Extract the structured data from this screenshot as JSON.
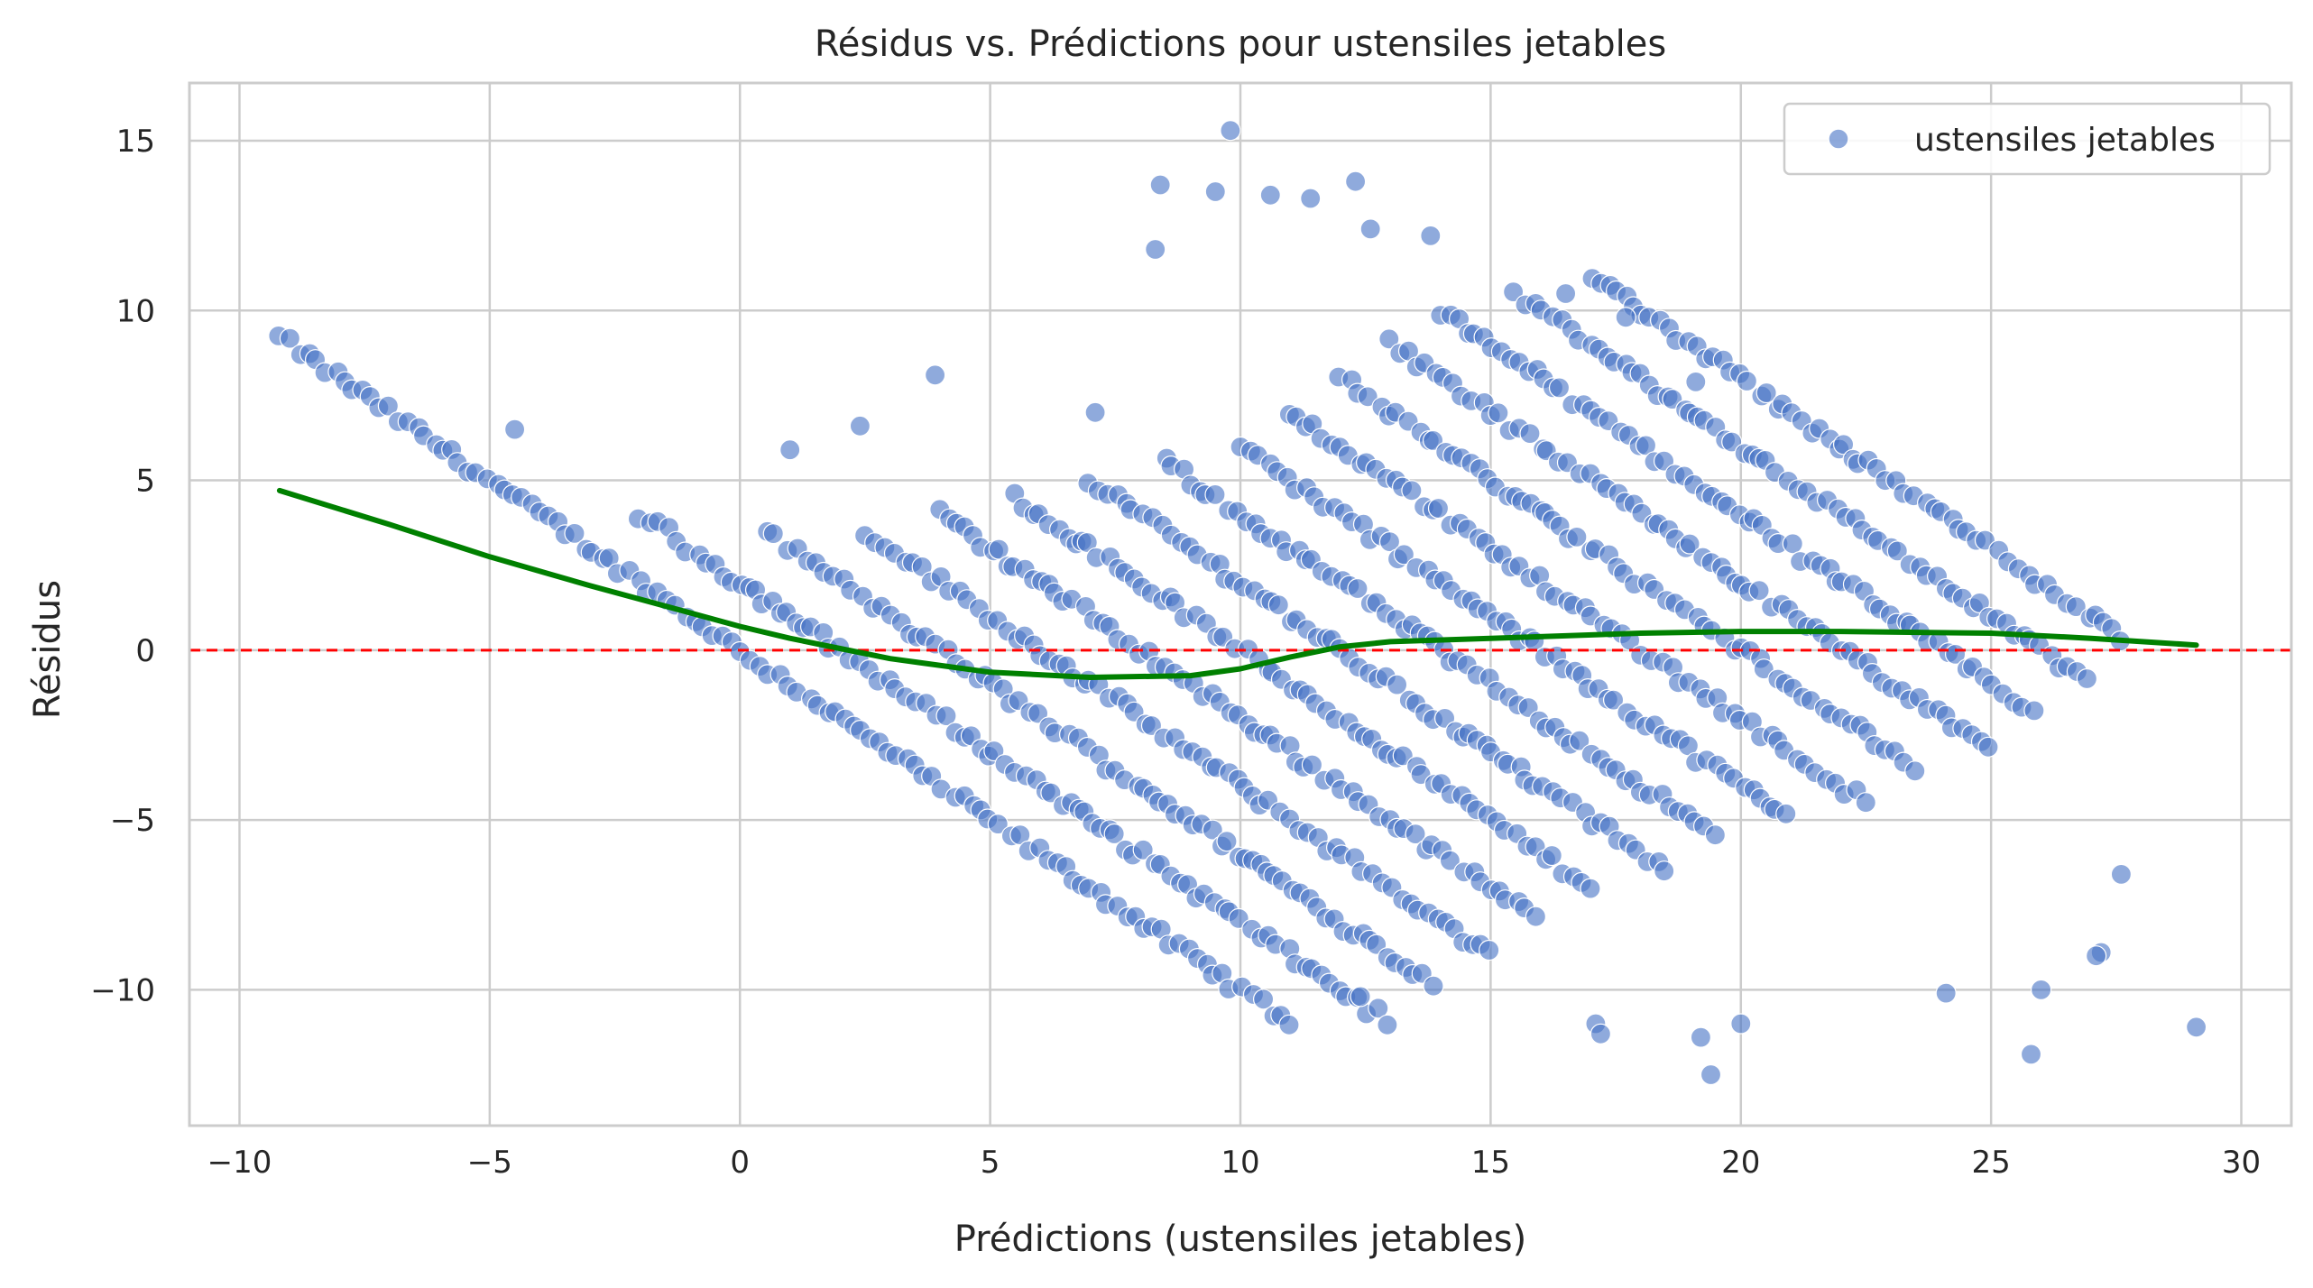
{
  "chart_data": {
    "type": "scatter",
    "title": "Résidus vs. Prédictions pour ustensiles jetables",
    "xlabel": "Prédictions (ustensiles jetables)",
    "ylabel": "Résidus",
    "xlim": [
      -11.0,
      31.0
    ],
    "ylim": [
      -14.0,
      16.7
    ],
    "xticks": [
      -10,
      -5,
      0,
      5,
      10,
      15,
      20,
      25,
      30
    ],
    "yticks": [
      -10,
      -5,
      0,
      5,
      10,
      15
    ],
    "xtick_labels": [
      "−10",
      "−5",
      "0",
      "5",
      "10",
      "15",
      "20",
      "25",
      "30"
    ],
    "ytick_labels": [
      "−10",
      "−5",
      "0",
      "5",
      "10",
      "15"
    ],
    "grid": true,
    "legend": {
      "position": "top-right",
      "entries": [
        "ustensiles jetables"
      ]
    },
    "colors": {
      "points": "#4472c4",
      "trend": "#008000",
      "zero_line": "#ff0000",
      "grid": "#cccccc"
    },
    "reference_line": {
      "y": 0,
      "style": "dashed",
      "color": "#ff0000"
    },
    "series": [
      {
        "name": "ustensiles jetables",
        "kind": "scatter",
        "note_points": "residual stripes follow y = c - x; stripe bands listed as [c, x_min, x_max]",
        "stripes": [
          [
            0,
            -9.2,
            11.1
          ],
          [
            2,
            -2.0,
            13.0
          ],
          [
            4,
            0.5,
            14.0
          ],
          [
            6,
            2.5,
            15.0
          ],
          [
            8,
            4.0,
            16.0
          ],
          [
            10,
            5.5,
            17.0
          ],
          [
            12,
            7.0,
            18.5
          ],
          [
            14,
            8.5,
            19.5
          ],
          [
            16,
            10.0,
            21.0
          ],
          [
            18,
            11.0,
            22.5
          ],
          [
            20,
            12.0,
            23.5
          ],
          [
            22,
            13.0,
            25.0
          ],
          [
            24,
            14.0,
            26.0
          ],
          [
            26,
            15.5,
            27.0
          ],
          [
            28,
            17.0,
            27.7
          ]
        ],
        "outliers": [
          [
            9.8,
            15.3
          ],
          [
            8.4,
            13.7
          ],
          [
            9.5,
            13.5
          ],
          [
            12.3,
            13.8
          ],
          [
            11.4,
            13.3
          ],
          [
            10.6,
            13.4
          ],
          [
            13.8,
            12.2
          ],
          [
            8.3,
            11.8
          ],
          [
            12.6,
            12.4
          ],
          [
            19.1,
            7.9
          ],
          [
            -4.5,
            6.5
          ],
          [
            1.0,
            5.9
          ],
          [
            3.9,
            8.1
          ],
          [
            2.4,
            6.6
          ],
          [
            7.1,
            7.0
          ],
          [
            16.5,
            10.5
          ],
          [
            17.7,
            9.8
          ],
          [
            29.1,
            -11.1
          ],
          [
            25.8,
            -11.9
          ],
          [
            19.4,
            -12.5
          ],
          [
            24.1,
            -10.1
          ],
          [
            27.2,
            -8.9
          ],
          [
            26.0,
            -10.0
          ],
          [
            17.1,
            -11.0
          ],
          [
            17.2,
            -11.3
          ],
          [
            12.4,
            -10.2
          ],
          [
            20.0,
            -11.0
          ],
          [
            19.2,
            -11.4
          ],
          [
            27.6,
            -6.6
          ],
          [
            27.1,
            -9.0
          ]
        ]
      },
      {
        "name": "",
        "kind": "line",
        "x": [
          -9.2,
          -7,
          -5,
          -3,
          -1,
          0,
          1,
          2,
          3,
          5,
          7,
          9,
          10,
          11,
          12,
          13,
          15,
          18,
          20,
          22,
          25,
          27,
          29.1
        ],
        "y": [
          4.7,
          3.7,
          2.75,
          1.9,
          1.1,
          0.7,
          0.35,
          0.05,
          -0.25,
          -0.65,
          -0.8,
          -0.75,
          -0.55,
          -0.2,
          0.1,
          0.25,
          0.35,
          0.5,
          0.55,
          0.55,
          0.5,
          0.35,
          0.15
        ]
      }
    ]
  }
}
